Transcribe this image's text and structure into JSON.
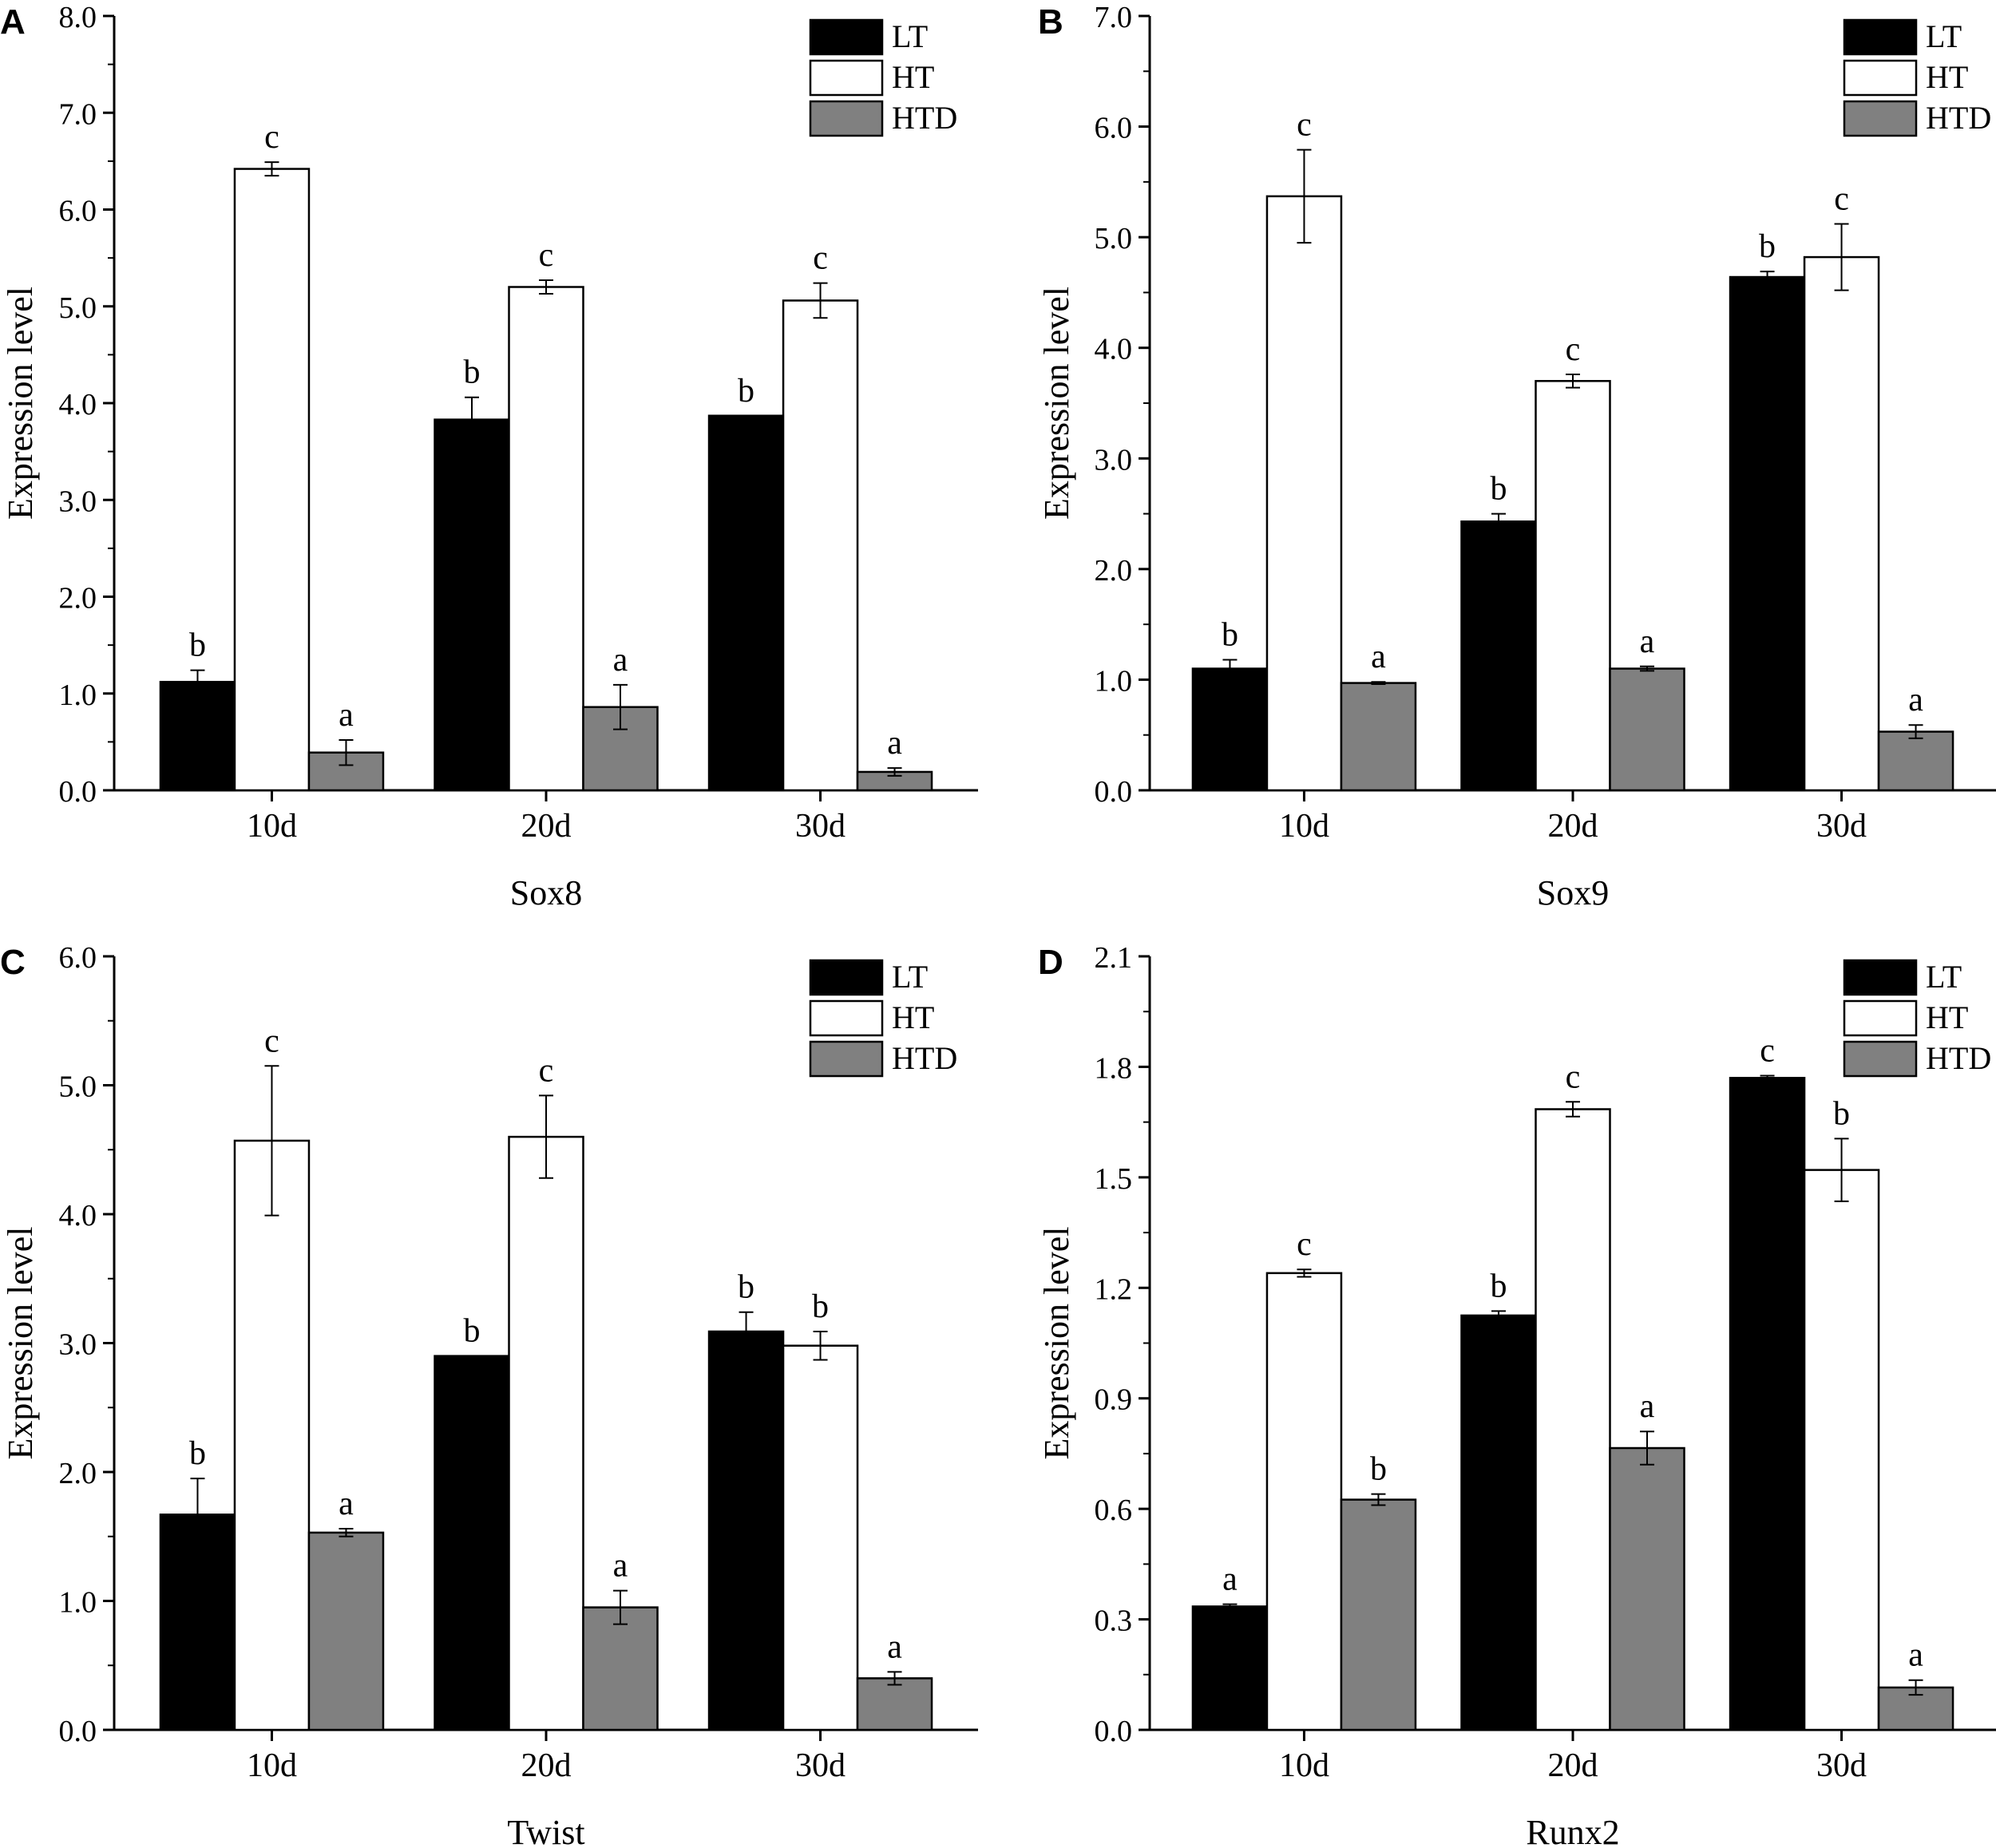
{
  "figure": {
    "legend": [
      {
        "label": "LT",
        "color": "#000000"
      },
      {
        "label": "HT",
        "color": "#ffffff"
      },
      {
        "label": "HTD",
        "color": "#808080"
      }
    ]
  },
  "chart_data": [
    {
      "panel": "A",
      "type": "bar",
      "title": "Sox8",
      "xlabel": "Sox8",
      "ylabel": "Expression level",
      "categories": [
        "10d",
        "20d",
        "30d"
      ],
      "ylim": [
        0,
        8
      ],
      "yticks": [
        "0.0",
        "1.0",
        "2.0",
        "3.0",
        "4.0",
        "5.0",
        "6.0",
        "7.0",
        "8.0"
      ],
      "series": [
        {
          "name": "LT",
          "color": "#000000",
          "values": [
            1.12,
            3.83,
            3.87
          ],
          "errors": [
            0.12,
            0.23,
            0.0
          ],
          "labels": [
            "b",
            "b",
            "b"
          ]
        },
        {
          "name": "HT",
          "color": "#ffffff",
          "values": [
            6.42,
            5.2,
            5.06
          ],
          "errors": [
            0.07,
            0.07,
            0.18
          ],
          "labels": [
            "c",
            "c",
            "c"
          ]
        },
        {
          "name": "HTD",
          "color": "#808080",
          "values": [
            0.39,
            0.86,
            0.19
          ],
          "errors": [
            0.13,
            0.23,
            0.04
          ],
          "labels": [
            "a",
            "a",
            "a"
          ]
        }
      ]
    },
    {
      "panel": "B",
      "type": "bar",
      "title": "Sox9",
      "xlabel": "Sox9",
      "ylabel": "Expression level",
      "categories": [
        "10d",
        "20d",
        "30d"
      ],
      "ylim": [
        0,
        7
      ],
      "yticks": [
        "0.0",
        "1.0",
        "2.0",
        "3.0",
        "4.0",
        "5.0",
        "6.0",
        "7.0"
      ],
      "series": [
        {
          "name": "LT",
          "color": "#000000",
          "values": [
            1.1,
            2.43,
            4.64
          ],
          "errors": [
            0.08,
            0.07,
            0.05
          ],
          "labels": [
            "b",
            "b",
            "b"
          ]
        },
        {
          "name": "HT",
          "color": "#ffffff",
          "values": [
            5.37,
            3.7,
            4.82
          ],
          "errors": [
            0.42,
            0.06,
            0.3
          ],
          "labels": [
            "c",
            "c",
            "c"
          ]
        },
        {
          "name": "HTD",
          "color": "#808080",
          "values": [
            0.97,
            1.1,
            0.53
          ],
          "errors": [
            0.01,
            0.02,
            0.06
          ],
          "labels": [
            "a",
            "a",
            "a"
          ]
        }
      ]
    },
    {
      "panel": "C",
      "type": "bar",
      "title": "Twist",
      "xlabel": "Twist",
      "ylabel": "Expression level",
      "categories": [
        "10d",
        "20d",
        "30d"
      ],
      "ylim": [
        0,
        6
      ],
      "yticks": [
        "0.0",
        "1.0",
        "2.0",
        "3.0",
        "4.0",
        "5.0",
        "6.0"
      ],
      "series": [
        {
          "name": "LT",
          "color": "#000000",
          "values": [
            1.67,
            2.9,
            3.09
          ],
          "errors": [
            0.28,
            0.0,
            0.15
          ],
          "labels": [
            "b",
            "b",
            "b"
          ]
        },
        {
          "name": "HT",
          "color": "#ffffff",
          "values": [
            4.57,
            4.6,
            2.98
          ],
          "errors": [
            0.58,
            0.32,
            0.11
          ],
          "labels": [
            "c",
            "c",
            "b"
          ]
        },
        {
          "name": "HTD",
          "color": "#808080",
          "values": [
            1.53,
            0.95,
            0.4
          ],
          "errors": [
            0.03,
            0.13,
            0.05
          ],
          "labels": [
            "a",
            "a",
            "a"
          ]
        }
      ]
    },
    {
      "panel": "D",
      "type": "bar",
      "title": "Runx2",
      "xlabel": "Runx2",
      "ylabel": "Expression level",
      "categories": [
        "10d",
        "20d",
        "30d"
      ],
      "ylim": [
        0,
        2.1
      ],
      "yticks": [
        "0.0",
        "0.3",
        "0.6",
        "0.9",
        "1.2",
        "1.5",
        "1.8",
        "2.1"
      ],
      "series": [
        {
          "name": "LT",
          "color": "#000000",
          "values": [
            0.335,
            1.125,
            1.77
          ],
          "errors": [
            0.006,
            0.012,
            0.006
          ],
          "labels": [
            "a",
            "b",
            "c"
          ]
        },
        {
          "name": "HT",
          "color": "#ffffff",
          "values": [
            1.24,
            1.685,
            1.52
          ],
          "errors": [
            0.01,
            0.02,
            0.085
          ],
          "labels": [
            "c",
            "c",
            "b"
          ]
        },
        {
          "name": "HTD",
          "color": "#808080",
          "values": [
            0.625,
            0.765,
            0.115
          ],
          "errors": [
            0.015,
            0.045,
            0.02
          ],
          "labels": [
            "b",
            "a",
            "a"
          ]
        }
      ]
    }
  ]
}
